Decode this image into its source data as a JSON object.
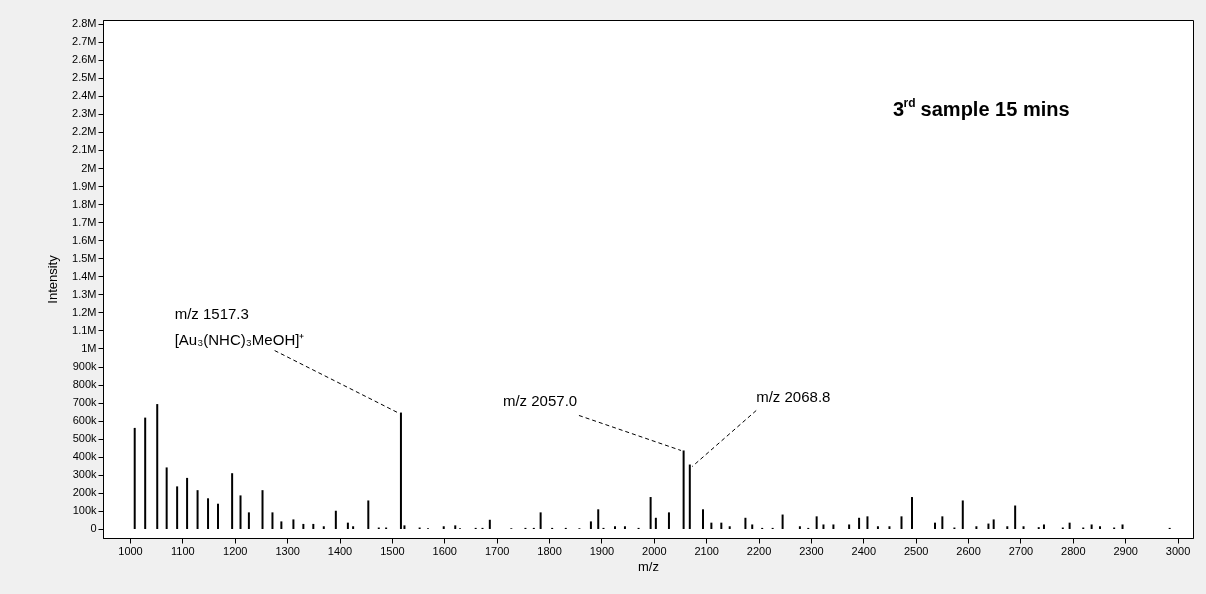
{
  "chart_data": {
    "type": "bar",
    "title": "3$^{rd}$ sample 15 mins",
    "xlabel": "m/z",
    "ylabel": "Intensity",
    "x": [
      1009,
      1029,
      1052,
      1070,
      1090,
      1109,
      1129,
      1149,
      1168,
      1195,
      1211,
      1227,
      1253,
      1272,
      1289,
      1312,
      1331,
      1350,
      1370,
      1393,
      1416,
      1426,
      1455,
      1475,
      1489,
      1517.3,
      1524,
      1553,
      1569,
      1599,
      1621,
      1630,
      1660,
      1673,
      1687,
      1728,
      1755,
      1771,
      1784,
      1806,
      1832,
      1858,
      1880,
      1894,
      1904,
      1926,
      1945,
      1971,
      1994,
      2004,
      2029,
      2057.0,
      2068.8,
      2094,
      2110,
      2129,
      2145,
      2175,
      2188,
      2207,
      2227,
      2246,
      2279,
      2295,
      2311,
      2324,
      2343,
      2373,
      2392,
      2408,
      2428,
      2450,
      2473,
      2493,
      2537,
      2551,
      2574,
      2590,
      2616,
      2639,
      2649,
      2675,
      2690,
      2706,
      2735,
      2745,
      2781,
      2794,
      2820,
      2836,
      2852,
      2879,
      2895,
      2985
    ],
    "values": [
      560000,
      617000,
      692000,
      341000,
      236000,
      283000,
      215000,
      170000,
      140000,
      309000,
      186000,
      92000,
      215000,
      92000,
      42000,
      53000,
      28000,
      28000,
      15000,
      101000,
      35000,
      15000,
      158000,
      8000,
      8000,
      645000,
      20000,
      8000,
      4000,
      15000,
      20000,
      4000,
      6000,
      6000,
      51000,
      4000,
      6000,
      6000,
      92000,
      6000,
      6000,
      4000,
      42000,
      109000,
      6000,
      15000,
      15000,
      6000,
      177000,
      62000,
      92000,
      435000,
      357000,
      109000,
      35000,
      35000,
      15000,
      62000,
      25000,
      6000,
      6000,
      80000,
      15000,
      6000,
      70000,
      25000,
      25000,
      25000,
      62000,
      70000,
      15000,
      15000,
      70000,
      177000,
      35000,
      70000,
      8000,
      158000,
      15000,
      30000,
      53000,
      15000,
      130000,
      15000,
      10000,
      25000,
      8000,
      35000,
      8000,
      25000,
      15000,
      8000,
      25000,
      6000
    ],
    "color": "#000000",
    "xlim": [
      958,
      3020
    ],
    "xticks": [
      1000,
      1100,
      1200,
      1300,
      1400,
      1500,
      1600,
      1700,
      1800,
      1900,
      2000,
      2100,
      2200,
      2300,
      2400,
      2500,
      2600,
      2700,
      2800,
      2900,
      3000
    ],
    "ylim": [
      -50000,
      2820000
    ],
    "yticks": [
      0,
      {
        "value": 100000,
        "label": "100k"
      },
      {
        "value": 200000,
        "label": "200k"
      },
      {
        "value": 300000,
        "label": "300k"
      },
      {
        "value": 400000,
        "label": "400k"
      },
      {
        "value": 500000,
        "label": "500k"
      },
      {
        "value": 600000,
        "label": "600k"
      },
      {
        "value": 700000,
        "label": "700k"
      },
      {
        "value": 800000,
        "label": "800k"
      },
      {
        "value": 900000,
        "label": "900k"
      },
      {
        "value": 1000000,
        "label": "1M"
      },
      {
        "value": 1100000,
        "label": "1.1M"
      },
      {
        "value": 1200000,
        "label": "1.2M"
      },
      {
        "value": 1300000,
        "label": "1.3M"
      },
      {
        "value": 1400000,
        "label": "1.4M"
      },
      {
        "value": 1500000,
        "label": "1.5M"
      },
      {
        "value": 1600000,
        "label": "1.6M"
      },
      {
        "value": 1700000,
        "label": "1.7M"
      },
      {
        "value": 1800000,
        "label": "1.8M"
      },
      {
        "value": 1900000,
        "label": "1.9M"
      },
      {
        "value": 2000000,
        "label": "2M"
      },
      {
        "value": 2100000,
        "label": "2.1M"
      },
      {
        "value": 2200000,
        "label": "2.2M"
      },
      {
        "value": 2300000,
        "label": "2.3M"
      },
      {
        "value": 2400000,
        "label": "2.4M"
      },
      {
        "value": 2500000,
        "label": "2.5M"
      },
      {
        "value": 2600000,
        "label": "2.6M"
      },
      {
        "value": 2700000,
        "label": "2.7M"
      },
      {
        "value": 2800000,
        "label": "2.8M"
      }
    ],
    "grid": false,
    "annotations": [
      {
        "text": "m/z 1517.3\n[Au₃(NHC)₃MeOH]⁺",
        "x": 1517.3,
        "y": 645000
      },
      {
        "text": "m/z 2057.0",
        "x": 2057.0,
        "y": 435000
      },
      {
        "text": "m/z 2068.8",
        "x": 2068.8,
        "y": 357000
      }
    ]
  }
}
